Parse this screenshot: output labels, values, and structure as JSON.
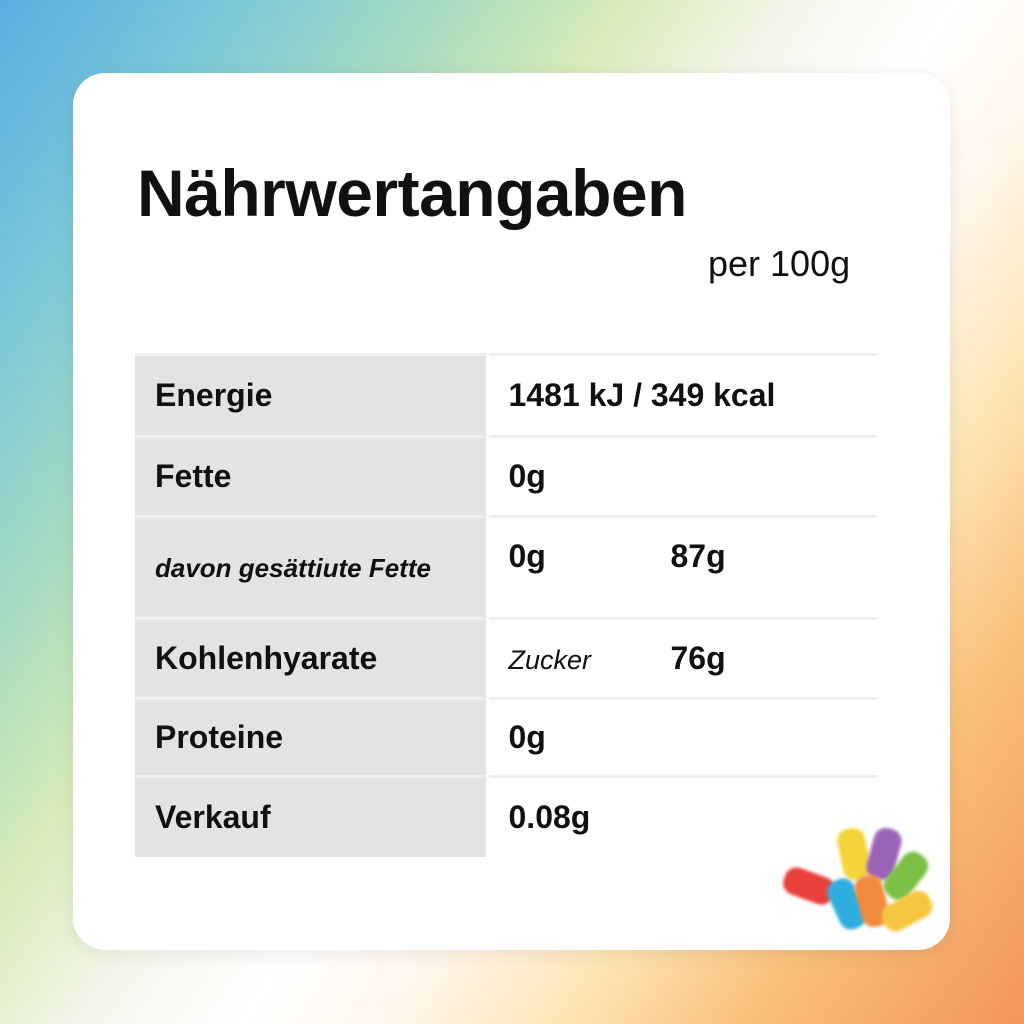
{
  "title": "Nährwertangaben",
  "per": "per 100g",
  "rows": [
    {
      "label": "Energie",
      "value": "1481 kJ / 349 kcal"
    },
    {
      "label": "Fette",
      "value": "0g"
    },
    {
      "label": "davon gesättiute Fette",
      "value": "0g",
      "value2": "87g"
    },
    {
      "label": "Kohlenhyarate",
      "sublabel": "Zucker",
      "value2": "76g"
    },
    {
      "label": "Proteine",
      "value": "0g"
    },
    {
      "label": "Verkauf",
      "value": "0.08g"
    }
  ],
  "bear_colors": [
    "#f5d43a",
    "#9b63b8",
    "#7cbf45",
    "#e8413b",
    "#2eaee0",
    "#f08a3c",
    "#f7c640"
  ]
}
